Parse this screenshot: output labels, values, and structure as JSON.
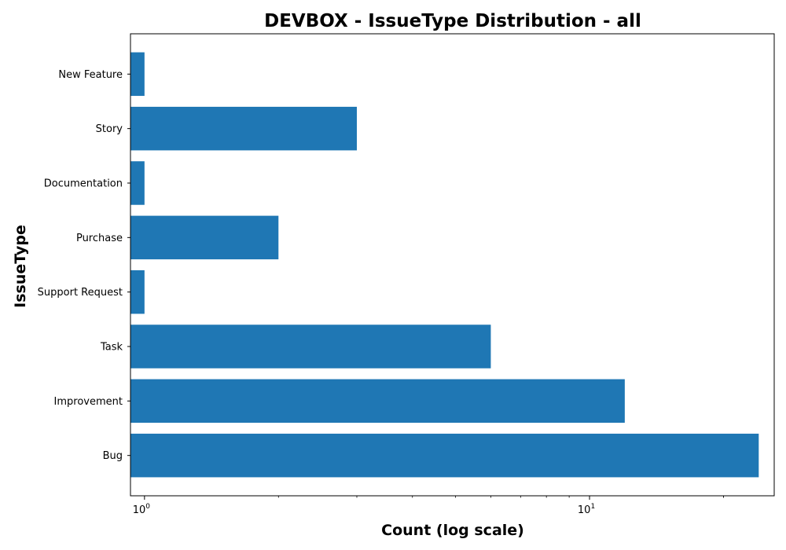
{
  "chart_data": {
    "type": "bar",
    "orientation": "horizontal",
    "title": "DEVBOX - IssueType Distribution - all",
    "xlabel": "Count (log scale)",
    "ylabel": "IssueType",
    "xscale": "log",
    "xlim": [
      0.93,
      26
    ],
    "categories": [
      "Bug",
      "Improvement",
      "Task",
      "Support Request",
      "Purchase",
      "Documentation",
      "Story",
      "New Feature"
    ],
    "values": [
      24,
      12,
      6,
      1,
      2,
      1,
      3,
      1
    ],
    "x_ticks": [
      {
        "value": 1,
        "base": "10",
        "exponent": "0"
      },
      {
        "value": 10,
        "base": "10",
        "exponent": "1"
      }
    ],
    "bar_color": "#1f77b4",
    "grid": false,
    "legend": "none"
  }
}
